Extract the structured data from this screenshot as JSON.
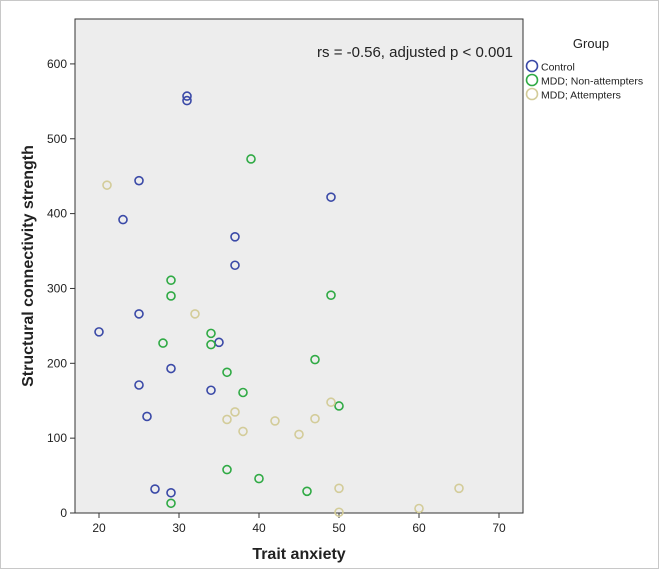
{
  "chart_data": {
    "type": "scatter",
    "title": "",
    "xlabel": "Trait anxiety",
    "ylabel": "Structural connectivity strength",
    "xlim": [
      17,
      73
    ],
    "ylim": [
      0,
      660
    ],
    "xticks": [
      20,
      30,
      40,
      50,
      60,
      70
    ],
    "yticks": [
      0,
      100,
      200,
      300,
      400,
      500,
      600
    ],
    "grid": false,
    "background": "#ededed",
    "annotation": "rs = -0.56, adjusted p < 0.001",
    "legend": {
      "title": "Group",
      "placement": "outside-top-right"
    },
    "series": [
      {
        "name": "Control",
        "color": "#3a49a7",
        "points": [
          [
            31,
            557
          ],
          [
            31,
            551
          ],
          [
            25,
            444
          ],
          [
            49,
            422
          ],
          [
            23,
            392
          ],
          [
            37,
            369
          ],
          [
            37,
            331
          ],
          [
            25,
            266
          ],
          [
            20,
            242
          ],
          [
            35,
            228
          ],
          [
            29,
            193
          ],
          [
            25,
            171
          ],
          [
            34,
            164
          ],
          [
            26,
            129
          ],
          [
            27,
            32
          ],
          [
            29,
            27
          ]
        ]
      },
      {
        "name": "MDD; Non-attempters",
        "color": "#2faa44",
        "points": [
          [
            39,
            473
          ],
          [
            29,
            311
          ],
          [
            29,
            290
          ],
          [
            49,
            291
          ],
          [
            34,
            240
          ],
          [
            28,
            227
          ],
          [
            34,
            225
          ],
          [
            47,
            205
          ],
          [
            36,
            188
          ],
          [
            38,
            161
          ],
          [
            50,
            143
          ],
          [
            36,
            58
          ],
          [
            40,
            46
          ],
          [
            46,
            29
          ],
          [
            29,
            13
          ]
        ]
      },
      {
        "name": "MDD; Attempters",
        "color": "#d3cc99",
        "points": [
          [
            21,
            438
          ],
          [
            32,
            266
          ],
          [
            49,
            148
          ],
          [
            37,
            135
          ],
          [
            36,
            125
          ],
          [
            42,
            123
          ],
          [
            47,
            126
          ],
          [
            38,
            109
          ],
          [
            45,
            105
          ],
          [
            50,
            33
          ],
          [
            65,
            33
          ],
          [
            60,
            6
          ],
          [
            50,
            1
          ]
        ]
      }
    ]
  }
}
